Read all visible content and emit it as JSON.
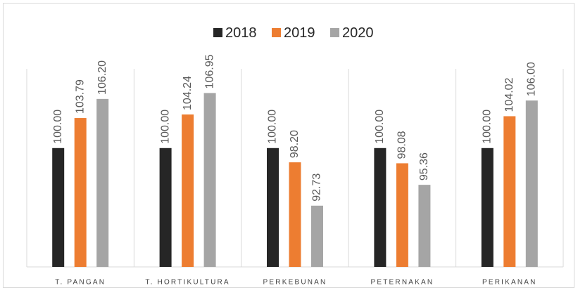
{
  "chart_data": {
    "type": "bar",
    "categories": [
      "T. PANGAN",
      "T. HORTIKULTURA",
      "PERKEBUNAN",
      "PETERNAKAN",
      "PERIKANAN"
    ],
    "series": [
      {
        "name": "2018",
        "color": "#262626",
        "values": [
          100,
          100,
          100,
          100,
          100
        ],
        "value_labels": [
          "100.00",
          "100.00",
          "100.00",
          "100.00",
          "100.00"
        ]
      },
      {
        "name": "2019",
        "color": "#ed7d31",
        "values": [
          103.79,
          104.24,
          98.2,
          98.08,
          104.02
        ],
        "value_labels": [
          "103.79",
          "104.24",
          "98.20",
          "98.08",
          "104.02"
        ]
      },
      {
        "name": "2020",
        "color": "#a5a5a5",
        "values": [
          106.2,
          106.95,
          92.73,
          95.36,
          106
        ],
        "value_labels": [
          "106.20",
          "106.95",
          "92.73",
          "95.36",
          "106.00"
        ]
      }
    ],
    "ylim": [
      85,
      110
    ],
    "legend": "top"
  }
}
